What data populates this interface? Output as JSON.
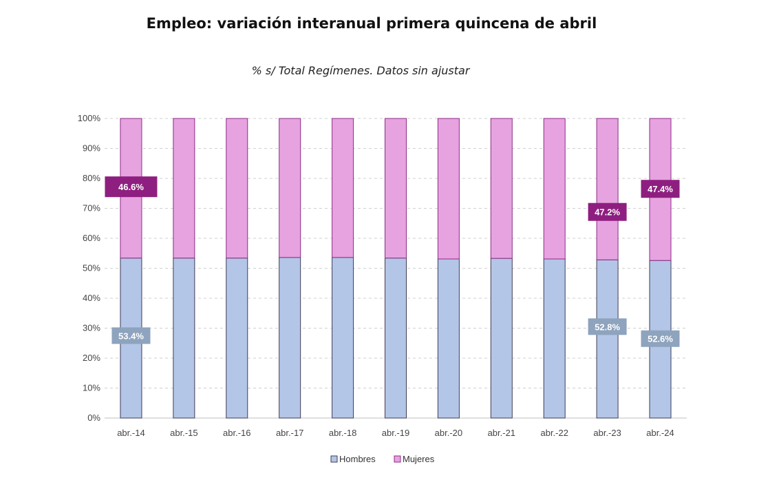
{
  "title": "Empleo: variación interanual primera quincena de abril",
  "subtitle": "% s/ Total Regímenes. Datos sin ajustar",
  "colors": {
    "hombres_fill": "#b4c6e7",
    "hombres_stroke": "#3c3c55",
    "mujeres_fill": "#e6a3e0",
    "mujeres_stroke": "#8e2b86",
    "hombres_label_bg": "#8ea3bd",
    "mujeres_label_bg": "#8e1f80",
    "grid": "#cfcfcf"
  },
  "chart_data": {
    "type": "bar",
    "stacked": true,
    "categories": [
      "abr.-14",
      "abr.-15",
      "abr.-16",
      "abr.-17",
      "abr.-18",
      "abr.-19",
      "abr.-20",
      "abr.-21",
      "abr.-22",
      "abr.-23",
      "abr.-24"
    ],
    "series": [
      {
        "name": "Hombres",
        "values": [
          53.4,
          53.4,
          53.4,
          53.6,
          53.6,
          53.4,
          53.1,
          53.3,
          53.1,
          52.8,
          52.6
        ]
      },
      {
        "name": "Mujeres",
        "values": [
          46.6,
          46.6,
          46.6,
          46.4,
          46.4,
          46.6,
          46.9,
          46.7,
          46.9,
          47.2,
          47.4
        ]
      }
    ],
    "ylim": [
      0,
      100
    ],
    "yticks": [
      "0%",
      "10%",
      "20%",
      "30%",
      "40%",
      "50%",
      "60%",
      "70%",
      "80%",
      "90%",
      "100%"
    ],
    "grid": true,
    "legend": "bottom",
    "data_labels": [
      {
        "series": "Hombres",
        "category": "abr.-14",
        "text": "53.4%"
      },
      {
        "series": "Mujeres",
        "category": "abr.-14",
        "text": "46.6%"
      },
      {
        "series": "Hombres",
        "category": "abr.-23",
        "text": "52.8%"
      },
      {
        "series": "Mujeres",
        "category": "abr.-23",
        "text": "47.2%"
      },
      {
        "series": "Hombres",
        "category": "abr.-24",
        "text": "52.6%"
      },
      {
        "series": "Mujeres",
        "category": "abr.-24",
        "text": "47.4%"
      }
    ]
  }
}
